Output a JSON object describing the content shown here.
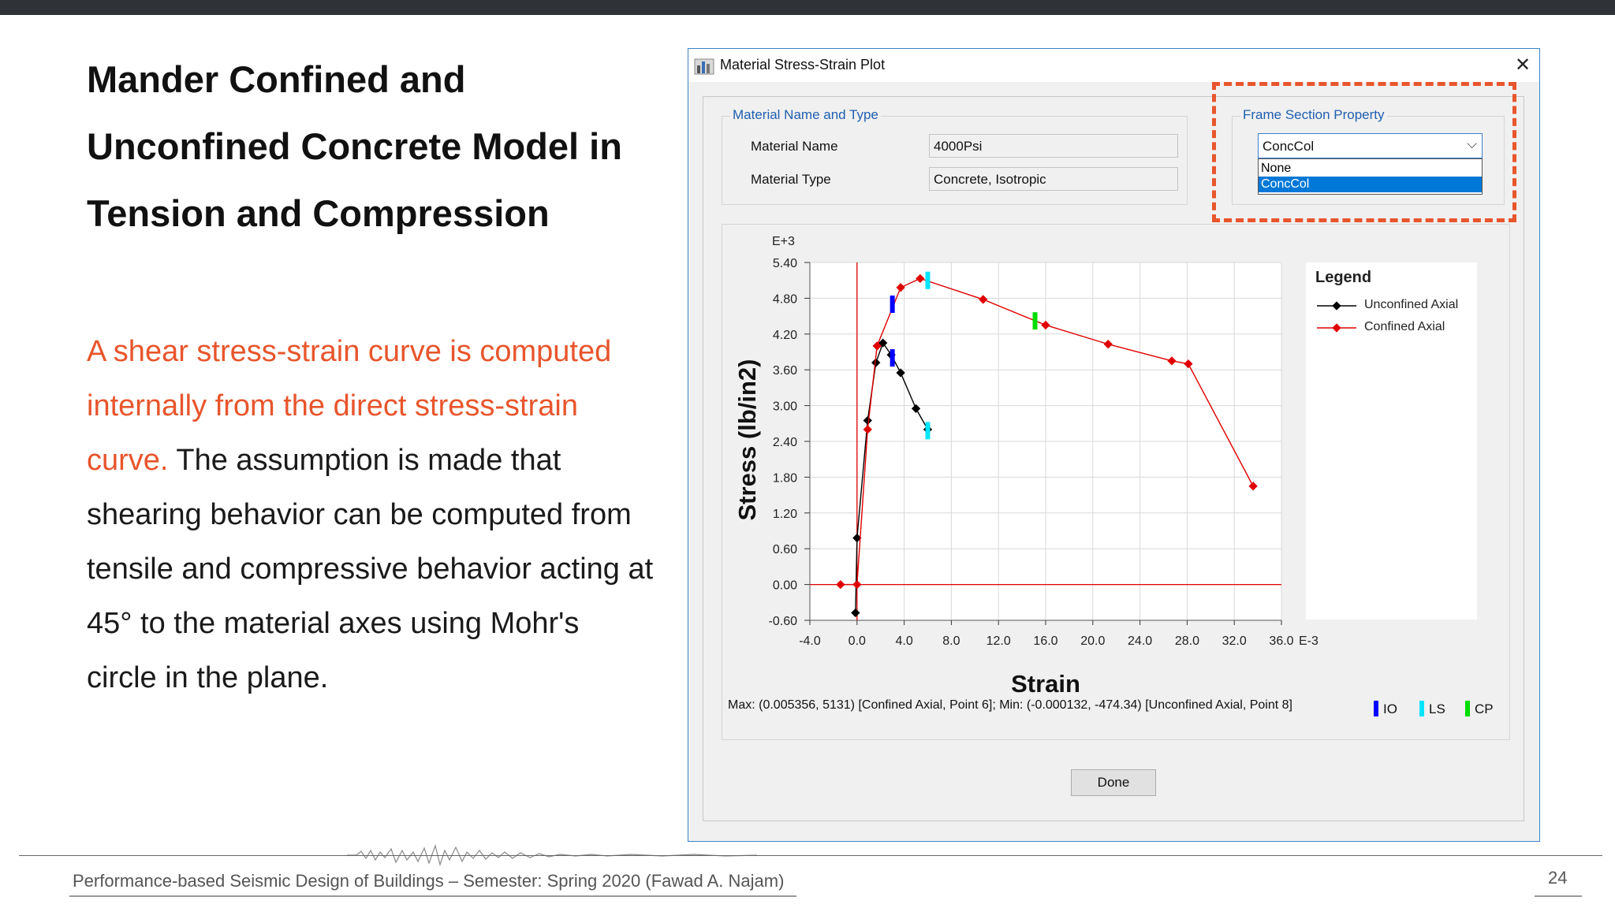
{
  "slide": {
    "title_lines": [
      "Mander Confined and",
      "Unconfined Concrete Model in",
      "Tension and Compression"
    ],
    "body_highlight_1": "A shear stress-strain curve is computed",
    "body_highlight_2": "internally from the direct stress-strain",
    "body_highlight_3": "curve.",
    "body_rest_1": " The assumption is made that",
    "body_lines": [
      "shearing behavior can be computed from",
      "tensile and compressive behavior acting at",
      "45° to the material axes using Mohr's",
      "circle in the plane."
    ],
    "highlight_color": "#e8552c",
    "footer": "Performance-based Seismic Design of Buildings – Semester: Spring 2020 (Fawad A. Najam)",
    "page_number": "24"
  },
  "dialog": {
    "title": "Material Stress-Strain Plot",
    "close_icon": "close-icon",
    "material_group": {
      "legend": "Material Name and Type",
      "name_label": "Material Name",
      "name_value": "4000Psi",
      "type_label": "Material Type",
      "type_value": "Concrete, Isotropic"
    },
    "frame_group": {
      "legend": "Frame Section Property",
      "selected": "ConcCol",
      "options": [
        "None",
        "ConcCol"
      ]
    },
    "info_line": "Max: (0.005356, 5131)   [Confined Axial, Point 6];   Min: (-0.000132, -474.34)   [Unconfined Axial, Point 8]",
    "perf_legend": [
      {
        "label": "IO",
        "color": "#0000ff"
      },
      {
        "label": "LS",
        "color": "#00e5ff"
      },
      {
        "label": "CP",
        "color": "#00dd00"
      }
    ],
    "done_label": "Done"
  },
  "chart_data": {
    "type": "line",
    "xlabel": "Strain",
    "ylabel": "Stress (lb/in2)",
    "x_exponent": "E-3",
    "y_exponent": "E+3",
    "xlim": [
      -4.0,
      36.0
    ],
    "ylim": [
      -0.6,
      5.4
    ],
    "x_ticks": [
      "-4.0",
      "0.0",
      "4.0",
      "8.0",
      "12.0",
      "16.0",
      "20.0",
      "24.0",
      "28.0",
      "32.0",
      "36.0"
    ],
    "y_ticks": [
      "5.40",
      "4.80",
      "4.20",
      "3.60",
      "3.00",
      "2.40",
      "1.80",
      "1.20",
      "0.60",
      "0.00",
      "-0.60"
    ],
    "grid": true,
    "legend_title": "Legend",
    "legend_position": "right",
    "series": [
      {
        "name": "Unconfined Axial",
        "color": "#000000",
        "x": [
          -0.13,
          0.0,
          0.9,
          1.6,
          2.2,
          2.9,
          3.7,
          5.0,
          6.0
        ],
        "y": [
          -0.474,
          0.78,
          2.75,
          3.72,
          4.05,
          3.85,
          3.55,
          2.95,
          2.6
        ]
      },
      {
        "name": "Confined Axial",
        "color": "#e00000",
        "x": [
          -1.4,
          0.0,
          0.9,
          1.7,
          3.7,
          5.356,
          10.7,
          16.0,
          21.3,
          26.7,
          28.1,
          33.6
        ],
        "y": [
          0.0,
          0.0,
          2.6,
          4.0,
          4.98,
          5.131,
          4.78,
          4.35,
          4.03,
          3.75,
          3.7,
          1.65
        ]
      }
    ],
    "markers": [
      {
        "level": "IO",
        "color": "#0000ff",
        "x": 3.0,
        "y": 4.7
      },
      {
        "level": "IO",
        "color": "#0000ff",
        "x": 3.0,
        "y": 3.8
      },
      {
        "level": "LS",
        "color": "#00e5ff",
        "x": 6.0,
        "y": 5.1
      },
      {
        "level": "LS",
        "color": "#00e5ff",
        "x": 6.0,
        "y": 2.58
      },
      {
        "level": "CP",
        "color": "#00dd00",
        "x": 15.1,
        "y": 4.42
      }
    ]
  }
}
